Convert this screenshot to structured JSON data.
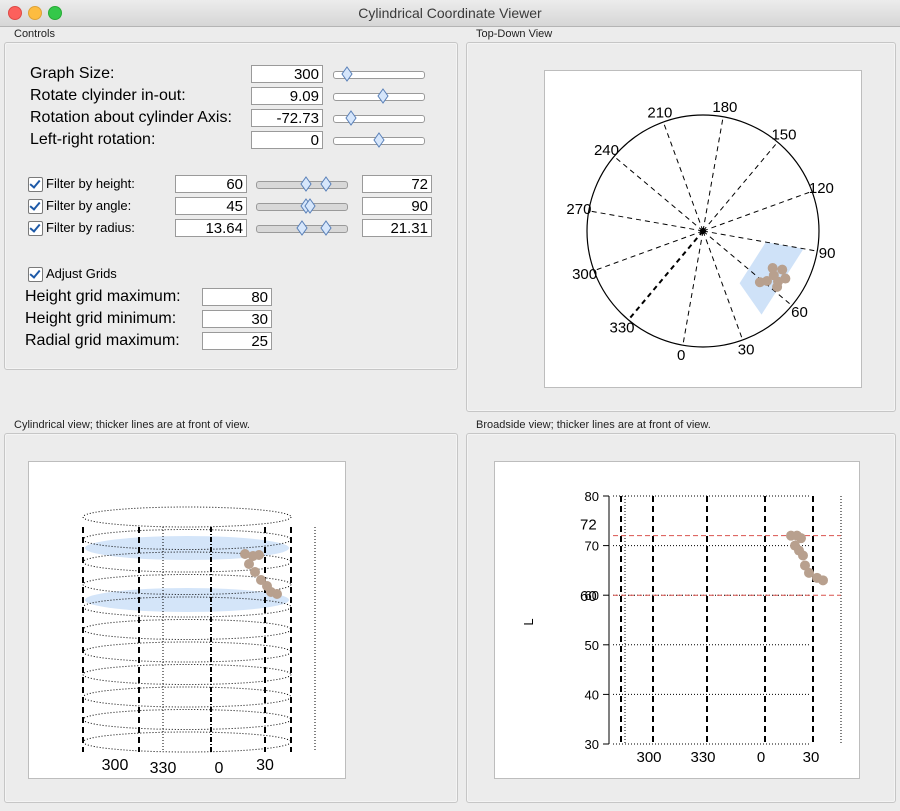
{
  "window": {
    "title": "Cylindrical Coordinate Viewer"
  },
  "panels": {
    "controls": "Controls",
    "topdown": "Top-Down View",
    "cyl": "Cylindrical view; thicker lines are at front of view.",
    "broadside": "Broadside view; thicker lines are at front of view."
  },
  "controls": {
    "graph_size": {
      "label": "Graph Size:",
      "value": "300",
      "slider": 0.1
    },
    "rotate_in_out": {
      "label": "Rotate clyinder in-out:",
      "value": "9.09",
      "slider": 0.55
    },
    "rotate_axis": {
      "label": "Rotation about cylinder Axis:",
      "value": "-72.73",
      "slider": 0.15
    },
    "left_right": {
      "label": "Left-right rotation:",
      "value": "0",
      "slider": 0.5
    },
    "filter_height": {
      "label": "Filter by height:",
      "checked": true,
      "min": "60",
      "max": "72",
      "lo": 0.55,
      "hi": 0.8
    },
    "filter_angle": {
      "label": "Filter by angle:",
      "checked": true,
      "min": "45",
      "max": "90",
      "lo": 0.55,
      "hi": 0.6
    },
    "filter_radius": {
      "label": "Filter by radius:",
      "checked": true,
      "min": "13.64",
      "max": "21.31",
      "lo": 0.5,
      "hi": 0.8
    },
    "adjust_grids": {
      "label": "Adjust Grids",
      "checked": true
    },
    "height_max": {
      "label": "Height grid maximum:",
      "value": "80"
    },
    "height_min": {
      "label": "Height grid minimum:",
      "value": "30"
    },
    "radial_max": {
      "label": "Radial grid maximum:",
      "value": "25"
    }
  },
  "topdown": {
    "angle_labels": [
      "0",
      "30",
      "60",
      "90",
      "120",
      "150",
      "180",
      "210",
      "240",
      "270",
      "300",
      "330"
    ]
  },
  "cylview": {
    "angle_labels": [
      "300",
      "330",
      "0",
      "30"
    ]
  },
  "broadside": {
    "y_ticks": [
      "80",
      "70",
      "60",
      "50",
      "40",
      "30"
    ],
    "x_labels": [
      "300",
      "330",
      "0",
      "30"
    ],
    "ylabel": "L",
    "marker_hi": "72",
    "marker_lo": "60"
  },
  "colors": {
    "points": "#b8a08e",
    "filter": "#cfe2f8",
    "accent": "#1e5aa8",
    "guide": "#d9534f"
  }
}
